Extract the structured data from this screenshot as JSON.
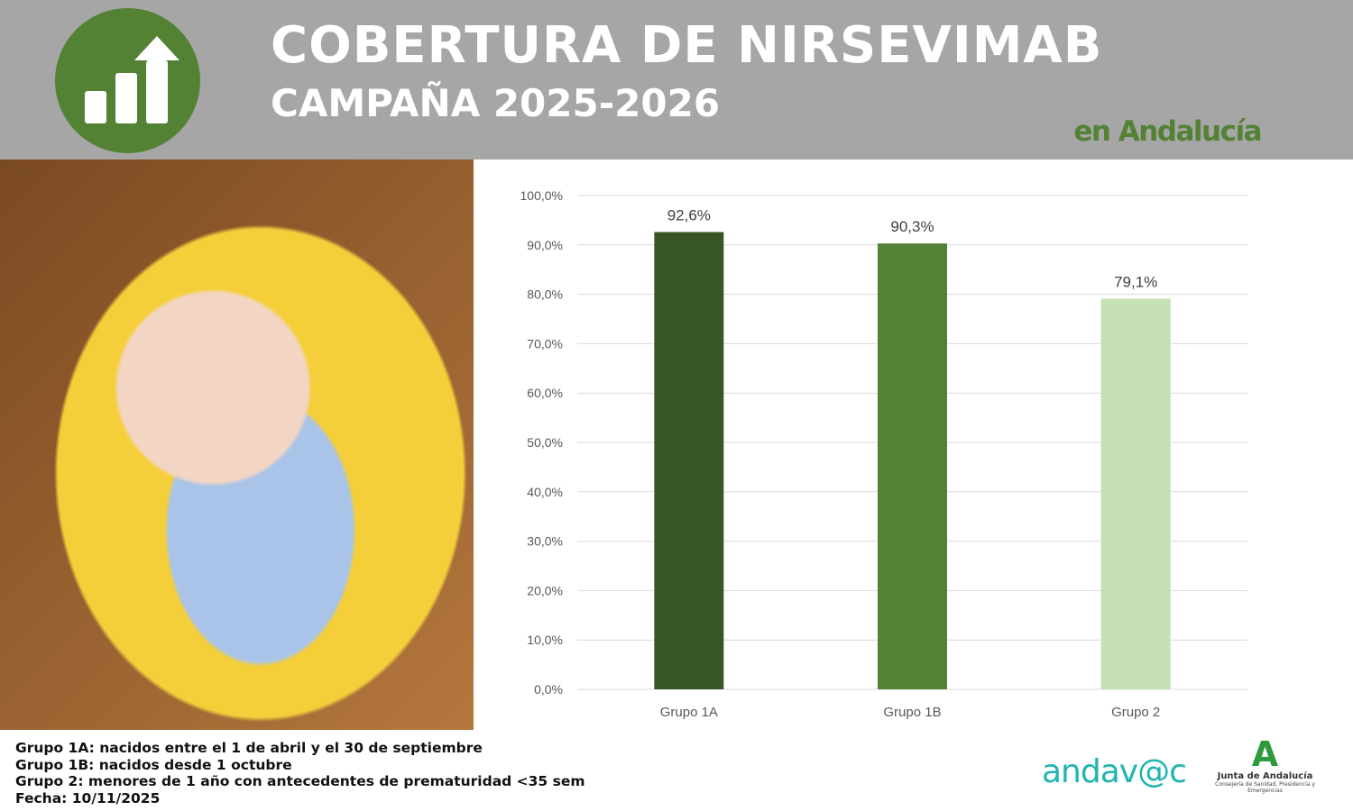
{
  "header": {
    "title": "COBERTURA DE NIRSEVIMAB",
    "subtitle": "CAMPAÑA 2025-2026",
    "tagline": "en Andalucía",
    "icon": "bar-chart-arrow-up-icon",
    "bg_color": "#a6a6a6",
    "accent": "#548235"
  },
  "chart_data": {
    "type": "bar",
    "categories": [
      "Grupo 1A",
      "Grupo 1B",
      "Grupo 2"
    ],
    "values": [
      92.6,
      90.3,
      79.1
    ],
    "data_labels": [
      "92,6%",
      "90,3%",
      "79,1%"
    ],
    "colors": [
      "#375623",
      "#548235",
      "#c5e0b4"
    ],
    "ylim": [
      0,
      100
    ],
    "yticks": [
      "0,0%",
      "10,0%",
      "20,0%",
      "30,0%",
      "40,0%",
      "50,0%",
      "60,0%",
      "70,0%",
      "80,0%",
      "90,0%",
      "100,0%"
    ],
    "grid": true,
    "xlabel": "",
    "ylabel": ""
  },
  "notes": [
    "Grupo 1A: nacidos entre el 1 de abril y el 30 de septiembre",
    "Grupo 1B: nacidos desde 1 octubre",
    "Grupo 2: menores de 1 año con antecedentes de prematuridad <35 sem",
    "Fecha: 10/11/2025"
  ],
  "logos": {
    "andavac": "andav@c",
    "junta_name": "Junta de Andalucía",
    "junta_dept": "Consejería de Sanidad, Presidencia y Emergencias"
  }
}
